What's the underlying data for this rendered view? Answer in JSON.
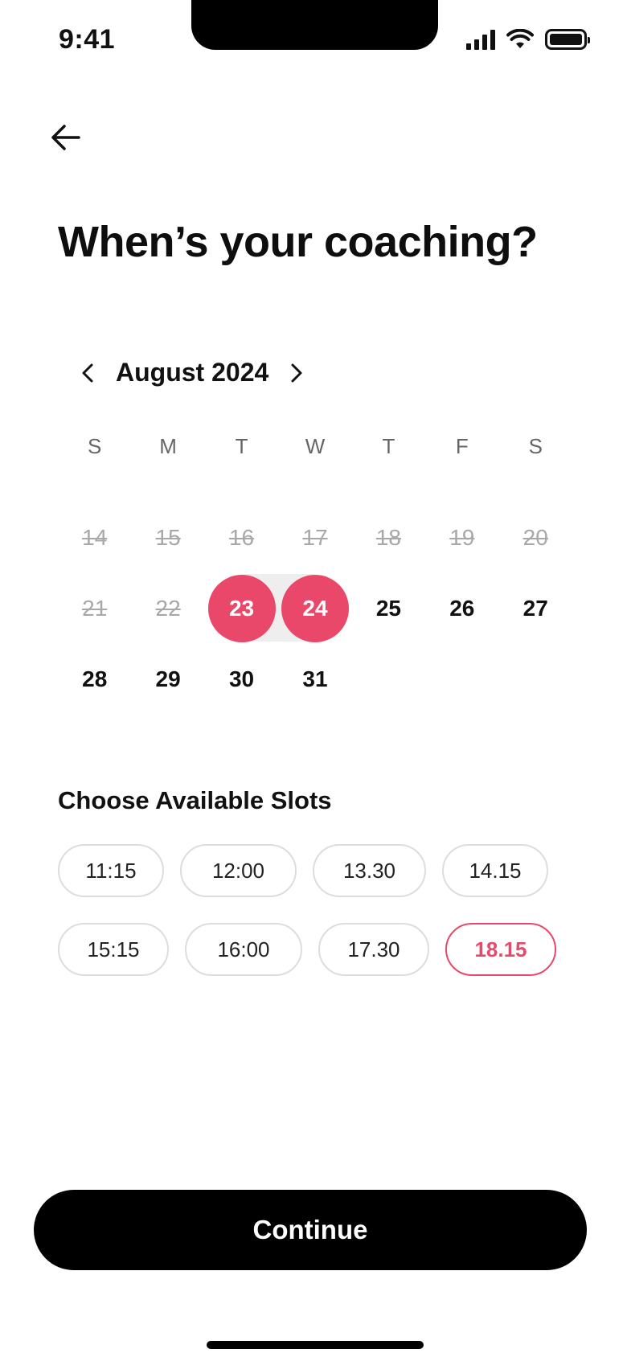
{
  "status_bar": {
    "time": "9:41"
  },
  "header": {
    "title": "When’s your coaching?"
  },
  "calendar": {
    "month_label": "August 2024",
    "weekdays": [
      "S",
      "M",
      "T",
      "W",
      "T",
      "F",
      "S"
    ],
    "weeks": [
      [
        "14",
        "15",
        "16",
        "17",
        "18",
        "19",
        "20"
      ],
      [
        "21",
        "22",
        "23",
        "24",
        "25",
        "26",
        "27"
      ],
      [
        "28",
        "29",
        "30",
        "31"
      ]
    ],
    "selected_days": [
      "23",
      "24"
    ],
    "accent_color": "#e9486a"
  },
  "slots": {
    "title": "Choose Available Slots",
    "row1": [
      "11:15",
      "12:00",
      "13.30",
      "14.15"
    ],
    "row2": [
      "15:15",
      "16:00",
      "17.30",
      "18.15"
    ],
    "selected": "18.15"
  },
  "actions": {
    "continue_label": "Continue"
  }
}
